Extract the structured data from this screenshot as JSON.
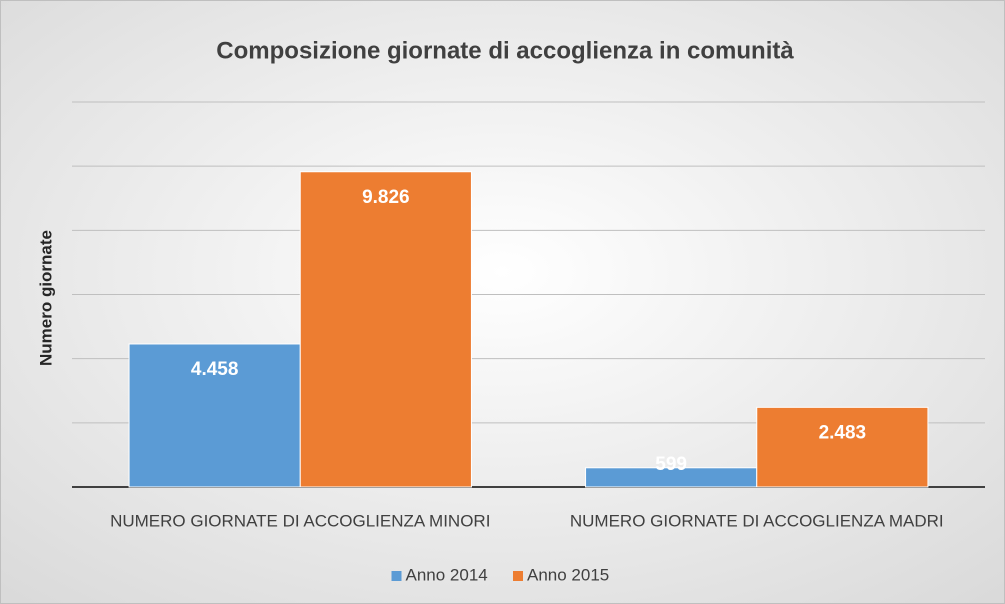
{
  "chart_data": {
    "type": "bar",
    "title": "Composizione giornate di accoglienza in comunità",
    "y_label": "Numero giornate",
    "categories": [
      "NUMERO GIORNATE DI ACCOGLIENZA MINORI",
      "NUMERO GIORNATE DI ACCOGLIENZA MADRI"
    ],
    "series": [
      {
        "name": "Anno 2014",
        "color": "#5b9bd5",
        "values": [
          4458,
          599
        ],
        "value_labels": [
          "4.458",
          "599"
        ]
      },
      {
        "name": "Anno 2015",
        "color": "#ed7d31",
        "values": [
          9826,
          2483
        ],
        "value_labels": [
          "9.826",
          "2.483"
        ]
      }
    ],
    "ylim": [
      0,
      12000
    ],
    "yticks": [
      0,
      2000,
      4000,
      6000,
      8000,
      10000,
      12000
    ],
    "grid": true,
    "legend": "bottom"
  }
}
